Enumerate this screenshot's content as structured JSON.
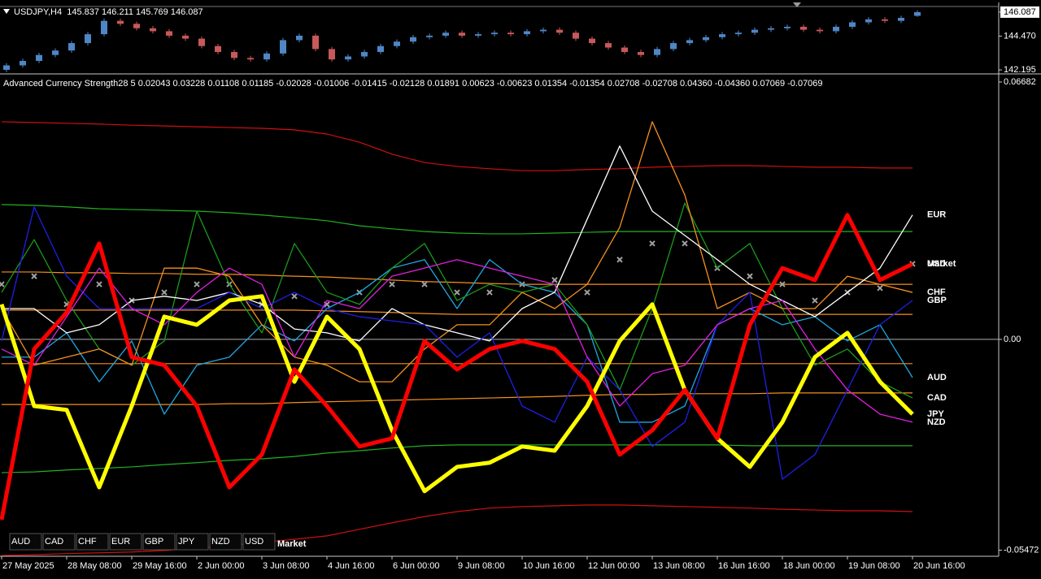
{
  "chart_data": [
    {
      "type": "candlestick",
      "title": "USDJPY,H4  145.837 146.211 145.769 146.087",
      "up_color": "#4f86c6",
      "down_color": "#c8585a",
      "open": [
        142.2,
        142.5,
        142.8,
        143.2,
        143.5,
        144.0,
        144.6,
        145.5,
        145.3,
        145.0,
        144.8,
        144.5,
        144.3,
        143.8,
        143.4,
        143.0,
        142.9,
        143.3,
        144.2,
        144.5,
        143.6,
        142.9,
        143.1,
        143.4,
        143.8,
        144.1,
        144.4,
        144.5,
        144.7,
        144.5,
        144.6,
        144.7,
        144.6,
        144.8,
        144.9,
        144.7,
        144.3,
        144.0,
        143.7,
        143.4,
        143.2,
        143.6,
        144.0,
        144.2,
        144.4,
        144.6,
        144.7,
        144.9,
        145.0,
        145.1,
        144.9,
        144.8,
        145.1,
        145.4,
        145.6,
        145.5,
        145.837
      ],
      "high": [
        142.65,
        142.95,
        143.35,
        143.65,
        144.15,
        144.75,
        145.65,
        145.65,
        145.45,
        145.15,
        144.95,
        144.65,
        144.45,
        143.95,
        143.55,
        143.15,
        143.45,
        144.35,
        144.65,
        144.65,
        143.75,
        143.25,
        143.55,
        143.95,
        144.25,
        144.55,
        144.65,
        144.85,
        144.85,
        144.75,
        144.85,
        144.85,
        144.95,
        145.05,
        145.05,
        144.85,
        144.45,
        144.15,
        143.85,
        143.55,
        143.75,
        144.15,
        144.35,
        144.55,
        144.75,
        144.85,
        145.05,
        145.15,
        145.25,
        145.25,
        145.05,
        145.25,
        145.55,
        145.75,
        145.75,
        145.85,
        146.211
      ],
      "low": [
        142.05,
        142.35,
        142.65,
        143.05,
        143.35,
        143.85,
        144.45,
        145.15,
        144.85,
        144.65,
        144.35,
        144.15,
        143.65,
        143.25,
        142.85,
        142.75,
        142.75,
        143.15,
        144.05,
        143.45,
        142.75,
        142.75,
        142.95,
        143.25,
        143.65,
        143.95,
        144.25,
        144.35,
        144.35,
        144.35,
        144.45,
        144.45,
        144.45,
        144.65,
        144.55,
        144.15,
        143.85,
        143.55,
        143.25,
        143.05,
        143.05,
        143.45,
        143.85,
        144.05,
        144.25,
        144.45,
        144.55,
        144.75,
        144.85,
        144.75,
        144.65,
        144.65,
        144.95,
        145.25,
        145.35,
        145.35,
        145.769
      ],
      "close": [
        142.5,
        142.8,
        143.2,
        143.5,
        144.0,
        144.6,
        145.5,
        145.3,
        145.0,
        144.8,
        144.5,
        144.3,
        143.8,
        143.4,
        143.0,
        142.9,
        143.3,
        144.2,
        144.5,
        143.6,
        142.9,
        143.1,
        143.4,
        143.8,
        144.1,
        144.4,
        144.5,
        144.7,
        144.5,
        144.6,
        144.7,
        144.6,
        144.8,
        144.9,
        144.7,
        144.3,
        144.0,
        143.7,
        143.4,
        143.2,
        143.6,
        144.0,
        144.2,
        144.4,
        144.6,
        144.7,
        144.9,
        145.0,
        145.1,
        144.9,
        144.8,
        145.1,
        145.4,
        145.6,
        145.5,
        145.7,
        146.087
      ],
      "ylim": [
        141.98,
        146.63
      ],
      "yticks": [
        146.087,
        {
          "value": 144.47,
          "label": "144.470"
        },
        142.195
      ]
    },
    {
      "type": "line",
      "title": "Advanced Currency Strength28 5 0.02043 0.03228 0.01108 0.01185 -0.02028 -0.01006 -0.01415 -0.02128 0.01891 0.00623 -0.00623 0.01354 -0.01354 0.02708 -0.02708 0.04360 -0.04360 0.07069 -0.07069",
      "categories": [
        "27 May 2025",
        null,
        "28 May 08:00",
        null,
        "29 May 16:00",
        null,
        "2 Jun 00:00",
        null,
        "3 Jun 08:00",
        null,
        "4 Jun 16:00",
        null,
        "6 Jun 00:00",
        null,
        "9 Jun 08:00",
        null,
        "10 Jun 16:00",
        null,
        "12 Jun 00:00",
        null,
        "13 Jun 08:00",
        null,
        "16 Jun 16:00",
        null,
        "18 Jun 00:00",
        null,
        "19 Jun 08:00",
        null,
        "20 Jun 16:00"
      ],
      "ylim": [
        -0.0563,
        0.0685
      ],
      "yticks": [
        -0.05472,
        {
          "value": 0,
          "label": "0.00"
        },
        0.06682
      ],
      "series": [
        {
          "name": "AUD",
          "color": "#1ea7e1",
          "width": 1.3,
          "values": [
            -0.0046,
            -0.0046,
            0.0017,
            -0.011,
            -0.0004,
            -0.0194,
            -0.0067,
            -0.0046,
            0.0038,
            -0.0004,
            0.008,
            0.0122,
            0.0185,
            0.0207,
            0.008,
            0.0207,
            0.0143,
            0.0122,
            0.0038,
            -0.0215,
            -0.0215,
            -0.0173,
            0.0038,
            0.008,
            0.0038,
            0.0059,
            -0.0004,
            0.0038,
            -0.0099
          ]
        },
        {
          "name": "CAD",
          "color": "#1a9a1a",
          "width": 1.3,
          "values": [
            0.0122,
            0.0259,
            0.0101,
            -0.0025,
            -0.0067,
            -0.0004,
            0.0333,
            0.0143,
            0.0017,
            0.0249,
            0.0122,
            0.0091,
            0.0185,
            0.0249,
            0.0101,
            0.0143,
            0.0122,
            0.0143,
            0.0038,
            -0.0131,
            0.008,
            0.0354,
            0.0185,
            0.0249,
            0.008,
            -0.0067,
            -0.0025,
            -0.011,
            -0.0152
          ]
        },
        {
          "name": "CHF",
          "color": "#f5901e",
          "width": 1.3,
          "values": [
            0.008,
            -0.0067,
            -0.0046,
            -0.0025,
            -0.0067,
            0.0185,
            0.0185,
            0.0164,
            0.0038,
            -0.0046,
            -0.0067,
            -0.011,
            -0.011,
            -0.0025,
            0.0038,
            0.0038,
            0.0122,
            0.008,
            0.0143,
            0.0291,
            0.0565,
            0.0375,
            0.008,
            0.0122,
            0.008,
            0.008,
            0.0164,
            0.0143,
            0.0122
          ]
        },
        {
          "name": "EUR",
          "color": "#ffffff",
          "width": 1.3,
          "values": [
            0.008,
            0.008,
            0.0017,
            0.0038,
            0.0101,
            0.0112,
            0.0101,
            0.0122,
            0.0091,
            0.0027,
            0.0017,
            -0.0004,
            0.008,
            0.0038,
            0.0017,
            -0.0004,
            0.008,
            0.0122,
            0.0312,
            0.0502,
            0.0333,
            0.027,
            0.0207,
            0.0143,
            0.0101,
            0.0059,
            0.0122,
            0.0185,
            0.0323
          ]
        },
        {
          "name": "GBP",
          "color": "#1f1fe6",
          "width": 1.3,
          "values": [
            -0.0004,
            0.0344,
            0.0164,
            0.008,
            0.008,
            0.008,
            0.008,
            0.0122,
            0.008,
            0.0122,
            0.008,
            0.0059,
            0.0048,
            0.0038,
            -0.0046,
            0.0017,
            -0.0173,
            -0.0215,
            -0.0046,
            -0.0131,
            -0.0278,
            -0.0215,
            0.0038,
            0.0122,
            -0.0363,
            -0.0299,
            -0.0131,
            0.0038,
            0.0101
          ]
        },
        {
          "name": "JPY",
          "color": "#ffff00",
          "width": 5,
          "values": [
            0.0091,
            -0.0173,
            -0.0183,
            -0.0384,
            -0.0173,
            0.0059,
            0.0038,
            0.0101,
            0.0112,
            -0.011,
            0.0059,
            -0.0025,
            -0.0236,
            -0.0394,
            -0.0331,
            -0.032,
            -0.0278,
            -0.0289,
            -0.0173,
            -0.0004,
            0.0091,
            -0.0131,
            -0.0257,
            -0.0331,
            -0.0215,
            -0.0046,
            0.0017,
            -0.011,
            -0.0194
          ]
        },
        {
          "name": "NZD",
          "color": "#e01ee0",
          "width": 1.3,
          "values": [
            -0.0025,
            -0.0067,
            0.0059,
            0.0185,
            0.008,
            0.0038,
            0.0122,
            0.0185,
            0.0143,
            -0.0046,
            0.0101,
            0.008,
            0.0164,
            0.0185,
            0.0207,
            0.0185,
            0.0164,
            0.0143,
            -0.0046,
            -0.0173,
            -0.0089,
            -0.0067,
            0.0038,
            0.008,
            0.0101,
            -0.0025,
            -0.0131,
            -0.0194,
            -0.0215
          ]
        },
        {
          "name": "USD",
          "color": "#ff0000",
          "width": 5,
          "values": [
            -0.0468,
            -0.0025,
            0.007,
            0.0249,
            -0.0046,
            -0.0067,
            -0.0173,
            -0.0384,
            -0.0299,
            -0.0078,
            -0.0173,
            -0.0278,
            -0.0257,
            -0.0004,
            -0.0078,
            -0.0025,
            -0.0004,
            -0.0025,
            -0.011,
            -0.0299,
            -0.0236,
            -0.0131,
            -0.0257,
            0.0038,
            0.0185,
            0.0154,
            0.0323,
            0.0154,
            0.0196
          ]
        },
        {
          "name": "Market",
          "color": "#a0a0a0",
          "markers": true,
          "values": [
            0.0143,
            0.0164,
            0.0091,
            0.0143,
            0.0101,
            0.0122,
            0.0143,
            0.0143,
            0.0091,
            0.0112,
            0.0091,
            0.0122,
            0.0143,
            0.0143,
            0.0122,
            0.0122,
            0.0143,
            0.0154,
            0.0122,
            0.0207,
            0.0249,
            0.0249,
            0.0185,
            0.0164,
            0.0143,
            0.0101,
            0.0122,
            0.0133,
            0.0196
          ]
        }
      ],
      "levels": [
        {
          "color": "#d01010",
          "values": [
            0.0565,
            0.0563,
            0.0561,
            0.0559,
            0.0556,
            0.0554,
            0.0552,
            0.055,
            0.0548,
            0.0544,
            0.0533,
            0.0512,
            0.0481,
            0.0459,
            0.0449,
            0.0443,
            0.0438,
            0.0438,
            0.0441,
            0.0443,
            0.0447,
            0.0449,
            0.0451,
            0.0451,
            0.0449,
            0.0447,
            0.0447,
            0.0445,
            0.0445
          ]
        },
        {
          "color": "#22b022",
          "values": [
            0.035,
            0.0348,
            0.0344,
            0.0339,
            0.0337,
            0.0335,
            0.0333,
            0.0329,
            0.0323,
            0.0316,
            0.0308,
            0.0295,
            0.0287,
            0.028,
            0.0276,
            0.0274,
            0.0274,
            0.0276,
            0.0278,
            0.028,
            0.028,
            0.028,
            0.028,
            0.028,
            0.028,
            0.028,
            0.028,
            0.028,
            0.028
          ]
        },
        {
          "color": "#f5901e",
          "values": [
            0.0175,
            0.0175,
            0.0173,
            0.0173,
            0.0171,
            0.0171,
            0.0169,
            0.0169,
            0.0167,
            0.0164,
            0.0162,
            0.0158,
            0.0154,
            0.015,
            0.0148,
            0.0145,
            0.0143,
            0.0143,
            0.0143,
            0.0143,
            0.0143,
            0.0143,
            0.0143,
            0.0143,
            0.0143,
            0.0143,
            0.0143,
            0.0143,
            0.0143
          ]
        },
        {
          "color": "#f5901e",
          "values": [
            0.0076,
            0.0076,
            0.0076,
            0.0076,
            0.0076,
            0.0076,
            0.0076,
            0.0076,
            0.0076,
            0.0076,
            0.0074,
            0.0072,
            0.007,
            0.0067,
            0.0065,
            0.0065,
            0.0065,
            0.0065,
            0.0065,
            0.0065,
            0.0065,
            0.0065,
            0.0065,
            0.0065,
            0.0065,
            0.0065,
            0.0065,
            0.0065,
            0.0065
          ]
        },
        {
          "color": "#f5901e",
          "values": [
            -0.0063,
            -0.0063,
            -0.0063,
            -0.0063,
            -0.0063,
            -0.0063,
            -0.0063,
            -0.0063,
            -0.0063,
            -0.0063,
            -0.0063,
            -0.0063,
            -0.0063,
            -0.0063,
            -0.0063,
            -0.0063,
            -0.0063,
            -0.0063,
            -0.0063,
            -0.0063,
            -0.0063,
            -0.0063,
            -0.0063,
            -0.0063,
            -0.0063,
            -0.0063,
            -0.0063,
            -0.0063,
            -0.0063
          ]
        },
        {
          "color": "#f5901e",
          "values": [
            -0.0169,
            -0.0169,
            -0.0169,
            -0.0169,
            -0.0169,
            -0.0169,
            -0.0169,
            -0.0167,
            -0.0167,
            -0.0164,
            -0.0162,
            -0.016,
            -0.0158,
            -0.0156,
            -0.0154,
            -0.0152,
            -0.015,
            -0.0148,
            -0.0145,
            -0.0143,
            -0.0143,
            -0.0141,
            -0.0141,
            -0.0141,
            -0.0139,
            -0.0139,
            -0.0139,
            -0.0139,
            -0.0139
          ]
        },
        {
          "color": "#22b022",
          "values": [
            -0.0346,
            -0.0344,
            -0.0339,
            -0.0335,
            -0.0331,
            -0.0325,
            -0.032,
            -0.0314,
            -0.031,
            -0.0304,
            -0.0295,
            -0.0289,
            -0.0282,
            -0.0276,
            -0.0274,
            -0.0274,
            -0.0274,
            -0.0274,
            -0.0274,
            -0.0274,
            -0.0274,
            -0.0274,
            -0.0274,
            -0.0276,
            -0.0276,
            -0.0276,
            -0.0276,
            -0.0276,
            -0.0276
          ]
        },
        {
          "color": "#d01010",
          "values": [
            -0.0561,
            -0.0559,
            -0.0556,
            -0.0554,
            -0.0552,
            -0.0548,
            -0.0542,
            -0.0535,
            -0.0527,
            -0.0519,
            -0.051,
            -0.0493,
            -0.0476,
            -0.046,
            -0.0447,
            -0.0438,
            -0.0434,
            -0.0432,
            -0.043,
            -0.043,
            -0.0432,
            -0.0434,
            -0.0436,
            -0.0438,
            -0.0441,
            -0.0443,
            -0.0445,
            -0.0445,
            -0.0447
          ]
        }
      ]
    }
  ]
}
